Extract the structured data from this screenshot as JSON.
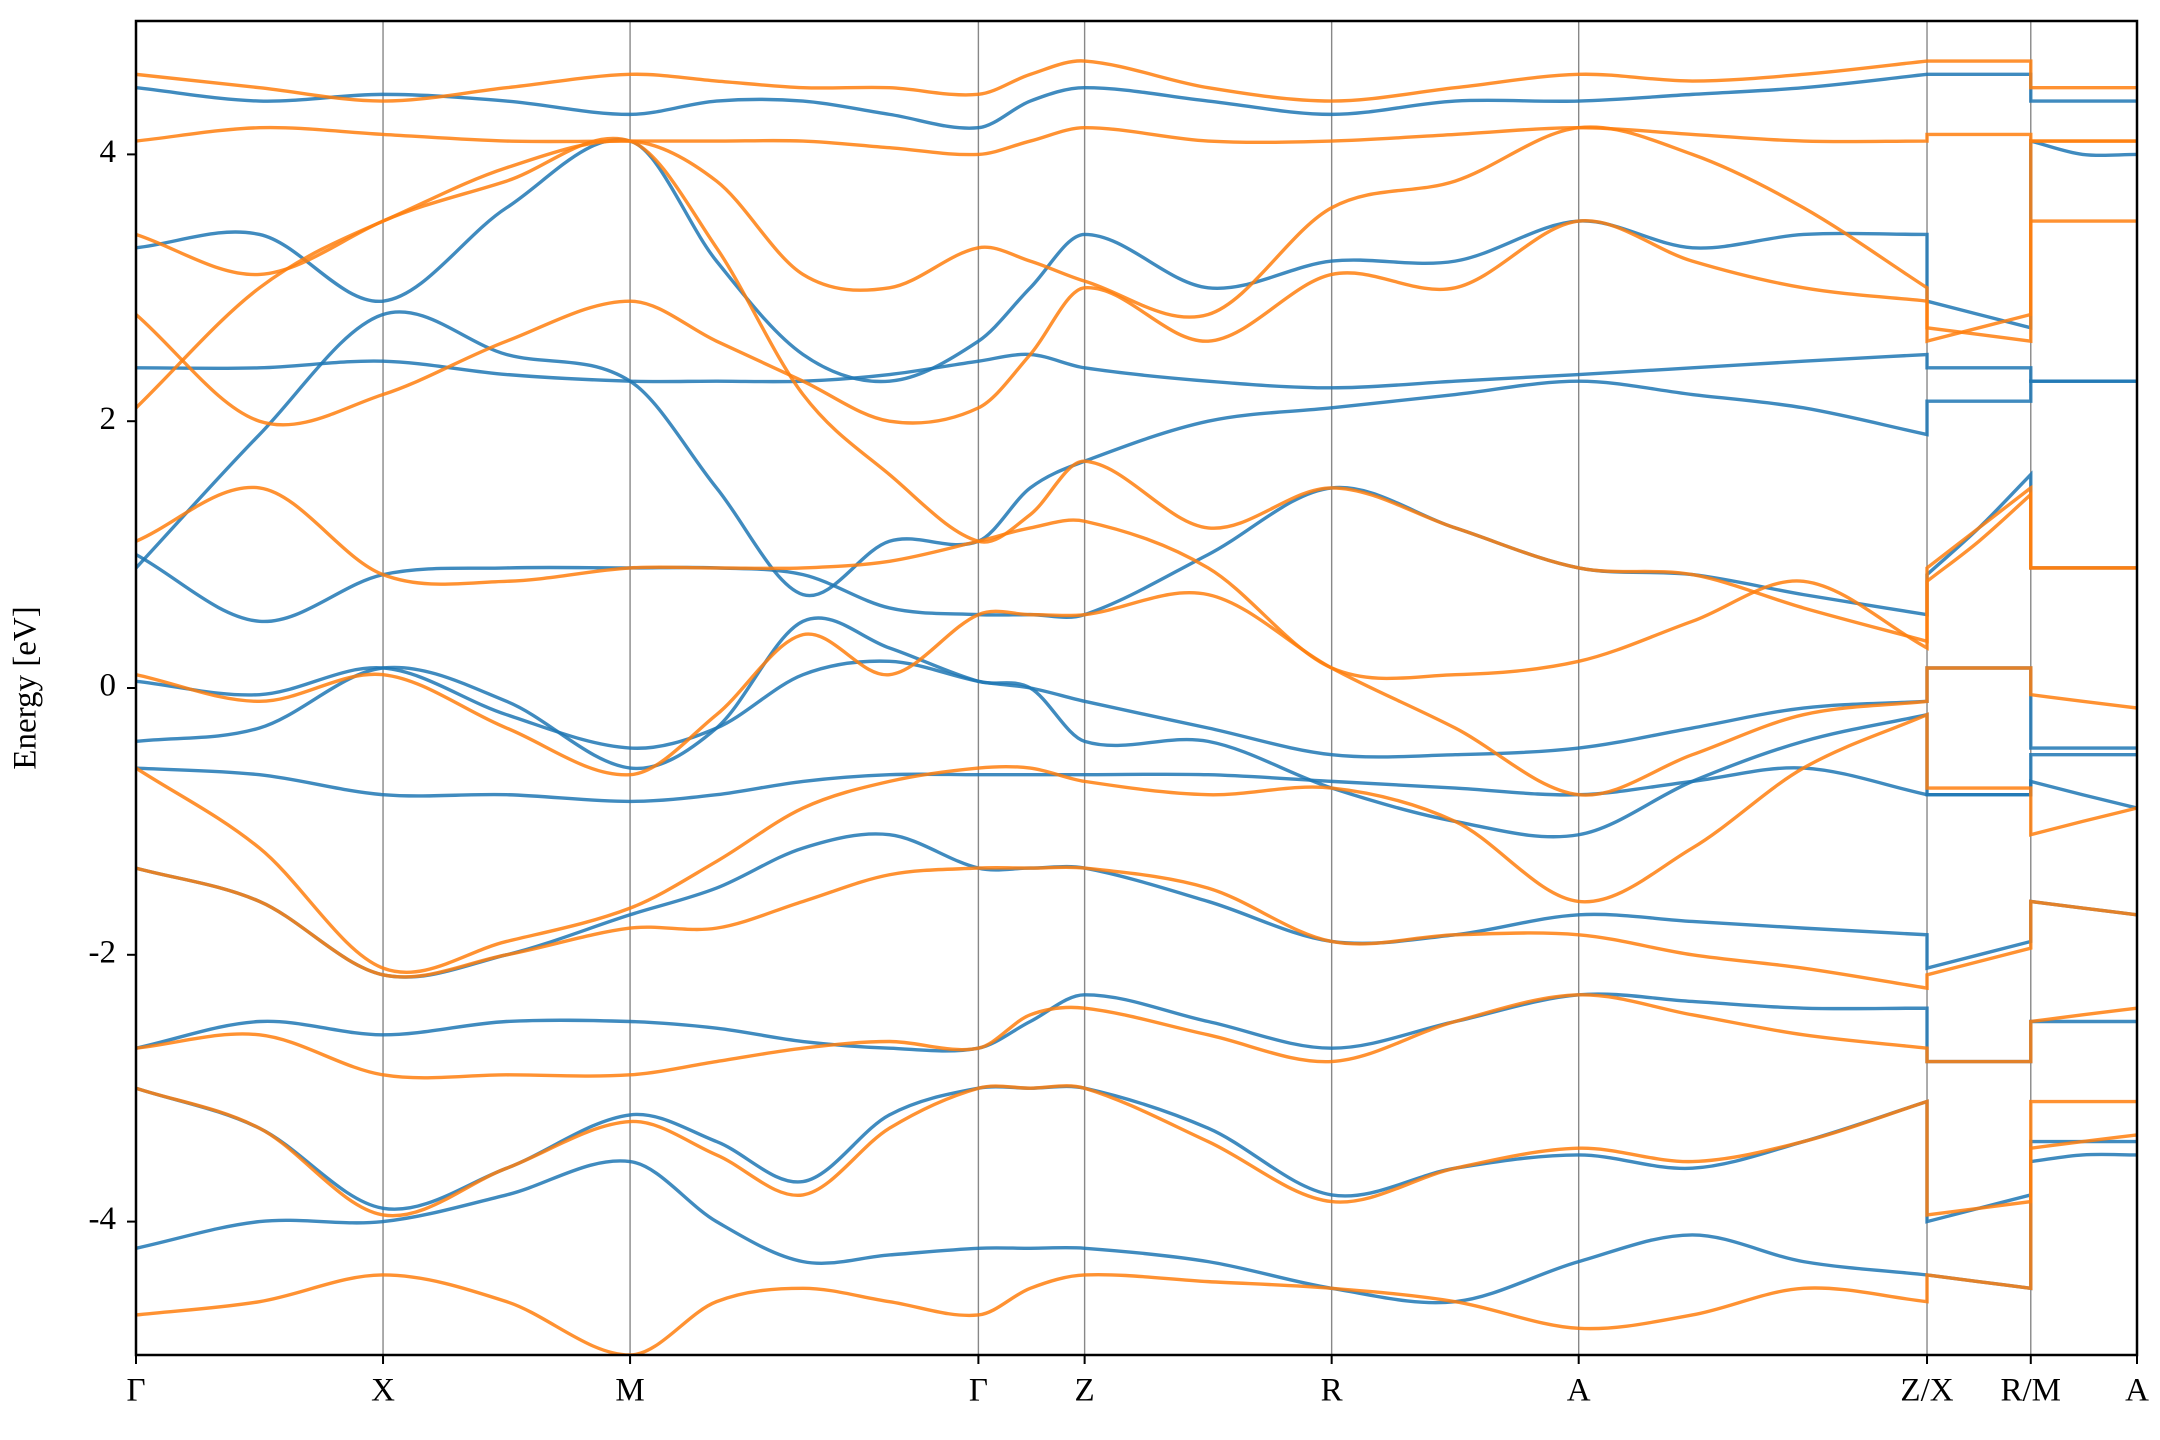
{
  "chart_data": {
    "type": "line",
    "ylabel": "Energy [eV]",
    "xlim": [
      0,
      8.1
    ],
    "ylim": [
      -5,
      5
    ],
    "yticks": [
      -4,
      -2,
      0,
      2,
      4
    ],
    "xticks": [
      {
        "value": 0,
        "label": "Γ"
      },
      {
        "value": 1,
        "label": "X"
      },
      {
        "value": 2,
        "label": "M"
      },
      {
        "value": 3.41,
        "label": "Γ"
      },
      {
        "value": 3.84,
        "label": "Z"
      },
      {
        "value": 4.84,
        "label": "R"
      },
      {
        "value": 5.84,
        "label": "A"
      },
      {
        "value": 7.25,
        "label": "Z/X"
      },
      {
        "value": 7.67,
        "label": "R/M"
      },
      {
        "value": 8.1,
        "label": "A"
      }
    ],
    "x": [
      0,
      0.5,
      1,
      1.5,
      2,
      2.35,
      2.7,
      3.05,
      3.41,
      3.62,
      3.84,
      4.34,
      4.84,
      5.34,
      5.84,
      6.3,
      6.75,
      7.25,
      7.25,
      7.46,
      7.67,
      7.67,
      7.88,
      8.1
    ],
    "series": [
      {
        "color": "#1f77b4",
        "values": [
          2.4,
          2.4,
          2.45,
          2.35,
          2.3,
          2.3,
          2.3,
          2.35,
          2.45,
          2.5,
          2.4,
          2.3,
          2.25,
          2.3,
          2.35,
          2.4,
          2.45,
          2.5,
          2.4,
          2.4,
          2.4,
          2.3,
          2.3,
          2.3
        ]
      },
      {
        "color": "#1f77b4",
        "values": [
          -0.6,
          -0.65,
          -0.8,
          -0.8,
          -0.85,
          -0.8,
          -0.7,
          -0.65,
          -0.65,
          -0.65,
          -0.65,
          -0.65,
          -0.7,
          -0.75,
          -0.8,
          -0.7,
          -0.6,
          -0.8,
          -0.8,
          -0.8,
          -0.8,
          -0.5,
          -0.5,
          -0.5
        ]
      },
      {
        "color": "#1f77b4",
        "values": [
          1.0,
          0.5,
          0.85,
          0.9,
          0.9,
          0.9,
          0.85,
          0.6,
          0.55,
          0.55,
          0.55,
          1.0,
          1.5,
          1.2,
          0.9,
          0.85,
          0.7,
          0.55,
          0.85,
          1.2,
          1.6,
          0.9,
          0.9,
          0.9
        ]
      },
      {
        "color": "#1f77b4",
        "values": [
          0.05,
          -0.05,
          0.15,
          -0.2,
          -0.45,
          -0.3,
          0.1,
          0.2,
          0.05,
          0.0,
          -0.1,
          -0.3,
          -0.5,
          -0.5,
          -0.45,
          -0.3,
          -0.15,
          -0.1,
          0.15,
          0.15,
          0.15,
          -0.45,
          -0.45,
          -0.45
        ]
      },
      {
        "color": "#1f77b4",
        "values": [
          -1.35,
          -1.6,
          -2.15,
          -2.0,
          -1.7,
          -1.5,
          -1.2,
          -1.1,
          -1.35,
          -1.35,
          -1.35,
          -1.6,
          -1.9,
          -1.85,
          -1.7,
          -1.75,
          -1.8,
          -1.85,
          -2.1,
          -2.0,
          -1.9,
          -1.6,
          -1.65,
          -1.7
        ]
      },
      {
        "color": "#1f77b4",
        "values": [
          -2.7,
          -2.5,
          -2.6,
          -2.5,
          -2.5,
          -2.55,
          -2.65,
          -2.7,
          -2.7,
          -2.5,
          -2.3,
          -2.5,
          -2.7,
          -2.5,
          -2.3,
          -2.35,
          -2.4,
          -2.4,
          -2.8,
          -2.8,
          -2.8,
          -2.5,
          -2.5,
          -2.5
        ]
      },
      {
        "color": "#1f77b4",
        "values": [
          -3.0,
          -3.3,
          -3.9,
          -3.6,
          -3.2,
          -3.4,
          -3.7,
          -3.2,
          -3.0,
          -3.0,
          -3.0,
          -3.3,
          -3.8,
          -3.6,
          -3.5,
          -3.6,
          -3.4,
          -3.1,
          -4.0,
          -3.9,
          -3.8,
          -3.4,
          -3.4,
          -3.4
        ]
      },
      {
        "color": "#1f77b4",
        "values": [
          -4.2,
          -4.0,
          -4.0,
          -3.8,
          -3.55,
          -4.0,
          -4.3,
          -4.25,
          -4.2,
          -4.2,
          -4.2,
          -4.3,
          -4.5,
          -4.6,
          -4.3,
          -4.1,
          -4.3,
          -4.4,
          -4.4,
          -4.45,
          -4.5,
          -3.55,
          -3.5,
          -3.5
        ]
      },
      {
        "color": "#1f77b4",
        "values": [
          3.3,
          3.4,
          2.9,
          3.6,
          4.1,
          3.2,
          2.5,
          2.3,
          2.6,
          3.0,
          3.4,
          3.0,
          3.2,
          3.2,
          3.5,
          3.3,
          3.4,
          3.4,
          2.9,
          2.8,
          2.7,
          4.1,
          4.0,
          4.0
        ]
      },
      {
        "color": "#1f77b4",
        "values": [
          4.5,
          4.4,
          4.45,
          4.4,
          4.3,
          4.4,
          4.4,
          4.3,
          4.2,
          4.4,
          4.5,
          4.4,
          4.3,
          4.4,
          4.4,
          4.45,
          4.5,
          4.6,
          4.6,
          4.6,
          4.6,
          4.4,
          4.4,
          4.4
        ]
      },
      {
        "color": "#1f77b4",
        "values": [
          0.9,
          1.9,
          2.8,
          2.5,
          2.3,
          1.5,
          0.7,
          1.1,
          1.1,
          1.5,
          1.7,
          2.0,
          2.1,
          2.2,
          2.3,
          2.2,
          2.1,
          1.9,
          2.15,
          2.15,
          2.15,
          2.3,
          2.3,
          2.3
        ]
      },
      {
        "color": "#1f77b4",
        "values": [
          -0.4,
          -0.3,
          0.15,
          -0.1,
          -0.6,
          -0.3,
          0.5,
          0.3,
          0.05,
          0.0,
          -0.4,
          -0.4,
          -0.75,
          -1.0,
          -1.1,
          -0.7,
          -0.4,
          -0.2,
          -0.8,
          -0.8,
          -0.8,
          -0.7,
          -0.8,
          -0.9
        ]
      },
      {
        "color": "#ff7f0e",
        "values": [
          4.1,
          4.2,
          4.15,
          4.1,
          4.1,
          4.1,
          4.1,
          4.05,
          4.0,
          4.1,
          4.2,
          4.1,
          4.1,
          4.15,
          4.2,
          4.15,
          4.1,
          4.1,
          4.15,
          4.15,
          4.15,
          4.1,
          4.1,
          4.1
        ]
      },
      {
        "color": "#ff7f0e",
        "values": [
          2.1,
          3.0,
          3.5,
          3.8,
          4.1,
          3.3,
          2.2,
          1.6,
          1.1,
          1.3,
          1.7,
          1.2,
          1.5,
          1.2,
          0.9,
          0.85,
          0.6,
          0.35,
          0.9,
          1.2,
          1.5,
          0.9,
          0.9,
          0.9
        ]
      },
      {
        "color": "#ff7f0e",
        "values": [
          0.1,
          -0.1,
          0.1,
          -0.3,
          -0.65,
          -0.2,
          0.4,
          0.1,
          0.55,
          0.55,
          0.55,
          0.7,
          0.15,
          -0.3,
          -0.8,
          -0.5,
          -0.2,
          -0.1,
          0.15,
          0.15,
          0.15,
          -0.05,
          -0.1,
          -0.15
        ]
      },
      {
        "color": "#ff7f0e",
        "values": [
          -0.6,
          -1.2,
          -2.1,
          -1.9,
          -1.65,
          -1.3,
          -0.9,
          -0.7,
          -0.6,
          -0.6,
          -0.7,
          -0.8,
          -0.75,
          -1.0,
          -1.6,
          -1.2,
          -0.6,
          -0.2,
          -0.75,
          -0.75,
          -0.75,
          -1.1,
          -1.0,
          -0.9
        ]
      },
      {
        "color": "#ff7f0e",
        "values": [
          -1.35,
          -1.6,
          -2.15,
          -2.0,
          -1.8,
          -1.8,
          -1.6,
          -1.4,
          -1.35,
          -1.35,
          -1.35,
          -1.5,
          -1.9,
          -1.85,
          -1.85,
          -2.0,
          -2.1,
          -2.25,
          -2.15,
          -2.05,
          -1.95,
          -1.6,
          -1.65,
          -1.7
        ]
      },
      {
        "color": "#ff7f0e",
        "values": [
          -2.7,
          -2.6,
          -2.9,
          -2.9,
          -2.9,
          -2.8,
          -2.7,
          -2.65,
          -2.7,
          -2.45,
          -2.4,
          -2.6,
          -2.8,
          -2.5,
          -2.3,
          -2.45,
          -2.6,
          -2.7,
          -2.8,
          -2.8,
          -2.8,
          -2.5,
          -2.45,
          -2.4
        ]
      },
      {
        "color": "#ff7f0e",
        "values": [
          -3.0,
          -3.3,
          -3.95,
          -3.6,
          -3.25,
          -3.5,
          -3.8,
          -3.3,
          -3.0,
          -3.0,
          -3.0,
          -3.4,
          -3.85,
          -3.6,
          -3.45,
          -3.55,
          -3.4,
          -3.1,
          -3.95,
          -3.9,
          -3.85,
          -3.45,
          -3.4,
          -3.35
        ]
      },
      {
        "color": "#ff7f0e",
        "values": [
          -4.7,
          -4.6,
          -4.4,
          -4.6,
          -5.0,
          -4.6,
          -4.5,
          -4.6,
          -4.7,
          -4.5,
          -4.4,
          -4.45,
          -4.5,
          -4.6,
          -4.8,
          -4.7,
          -4.5,
          -4.6,
          -4.4,
          -4.45,
          -4.5,
          -3.1,
          -3.1,
          -3.1
        ]
      },
      {
        "color": "#ff7f0e",
        "values": [
          2.8,
          2.0,
          2.2,
          2.6,
          2.9,
          2.6,
          2.3,
          2.0,
          2.1,
          2.5,
          3.0,
          2.6,
          3.1,
          3.0,
          3.5,
          3.2,
          3.0,
          2.9,
          2.6,
          2.7,
          2.8,
          3.5,
          3.5,
          3.5
        ]
      },
      {
        "color": "#ff7f0e",
        "values": [
          4.6,
          4.5,
          4.4,
          4.5,
          4.6,
          4.55,
          4.5,
          4.5,
          4.45,
          4.6,
          4.7,
          4.5,
          4.4,
          4.5,
          4.6,
          4.55,
          4.6,
          4.7,
          4.7,
          4.7,
          4.7,
          4.5,
          4.5,
          4.5
        ]
      },
      {
        "color": "#ff7f0e",
        "values": [
          1.1,
          1.5,
          0.85,
          0.8,
          0.9,
          0.9,
          0.9,
          0.95,
          1.1,
          1.2,
          1.25,
          0.9,
          0.15,
          0.1,
          0.2,
          0.5,
          0.8,
          0.3,
          0.8,
          1.1,
          1.45,
          0.9,
          0.9,
          0.9
        ]
      },
      {
        "color": "#ff7f0e",
        "values": [
          3.4,
          3.1,
          3.5,
          3.9,
          4.1,
          3.8,
          3.1,
          3.0,
          3.3,
          3.2,
          3.05,
          2.8,
          3.6,
          3.8,
          4.2,
          4.0,
          3.6,
          3.0,
          2.7,
          2.65,
          2.6,
          4.1,
          4.1,
          4.1
        ]
      }
    ]
  }
}
